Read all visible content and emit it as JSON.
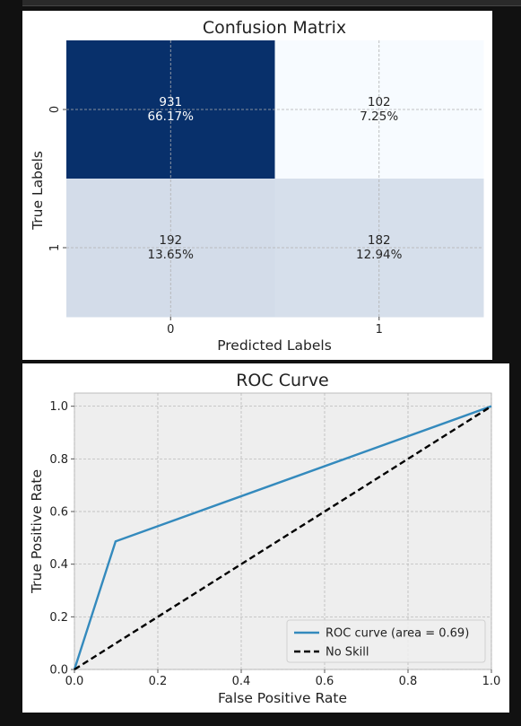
{
  "chart_data": [
    {
      "type": "heatmap",
      "title": "Confusion Matrix",
      "xlabel": "Predicted Labels",
      "ylabel": "True Labels",
      "x_ticks": [
        "0",
        "1"
      ],
      "y_ticks": [
        "0",
        "1"
      ],
      "values": [
        [
          931,
          102
        ],
        [
          192,
          182
        ]
      ],
      "percent_labels": [
        [
          "66.17%",
          "7.25%"
        ],
        [
          "13.65%",
          "12.94%"
        ]
      ],
      "colormap": "Blues",
      "grid": true
    },
    {
      "type": "line",
      "title": "ROC Curve",
      "xlabel": "False Positive Rate",
      "ylabel": "True Positive Rate",
      "xlim": [
        0.0,
        1.0
      ],
      "ylim": [
        0.0,
        1.05
      ],
      "x_ticks": [
        "0.0",
        "0.2",
        "0.4",
        "0.6",
        "0.8",
        "1.0"
      ],
      "y_ticks": [
        "0.0",
        "0.2",
        "0.4",
        "0.6",
        "0.8",
        "1.0"
      ],
      "grid": true,
      "legend_position": "lower-right",
      "series": [
        {
          "name": "ROC curve (area = 0.69)",
          "x": [
            0.0,
            0.0987,
            1.0
          ],
          "y": [
            0.0,
            0.4866,
            1.0
          ],
          "color": "#348abd",
          "style": "solid"
        },
        {
          "name": "No Skill",
          "x": [
            0.0,
            1.0
          ],
          "y": [
            0.0,
            1.0
          ],
          "color": "#000000",
          "style": "dashed"
        }
      ]
    }
  ]
}
